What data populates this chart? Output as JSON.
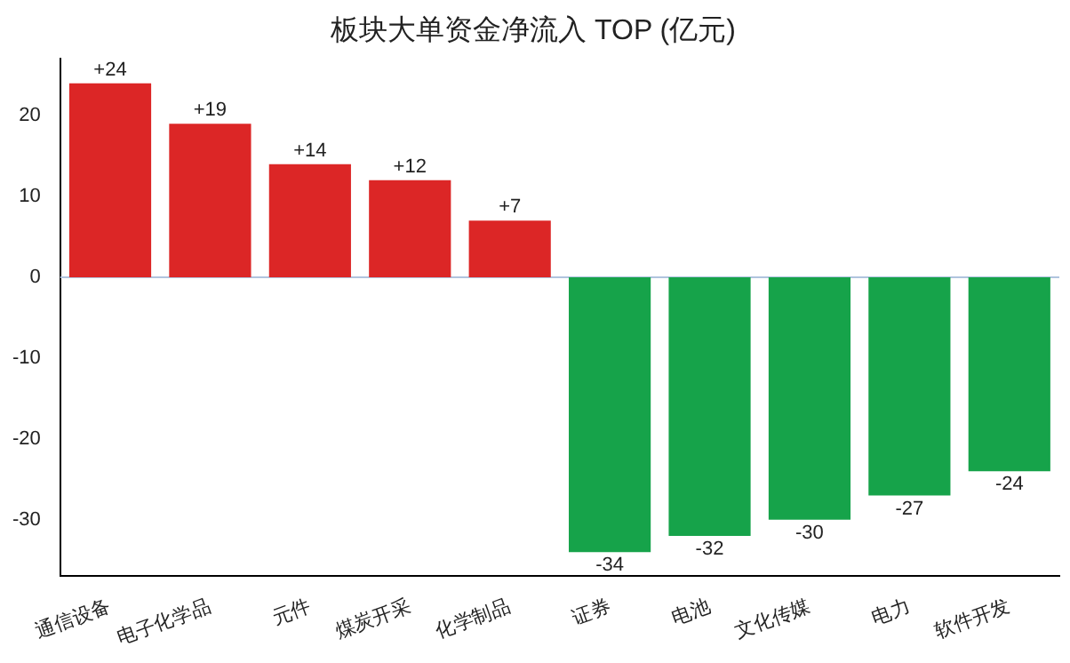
{
  "chart_data": {
    "type": "bar",
    "title": "板块大单资金净流入 TOP (亿元)",
    "categories": [
      "通信设备",
      "电子化学品",
      "元件",
      "煤炭开采",
      "化学制品",
      "证券",
      "电池",
      "文化传媒",
      "电力",
      "软件开发"
    ],
    "values": [
      24,
      19,
      14,
      12,
      7,
      -34,
      -32,
      -30,
      -27,
      -24
    ],
    "value_labels": [
      "+24",
      "+19",
      "+14",
      "+12",
      "+7",
      "-34",
      "-32",
      "-30",
      "-27",
      "-24"
    ],
    "colors": [
      "#dc2626",
      "#dc2626",
      "#dc2626",
      "#dc2626",
      "#dc2626",
      "#16a34a",
      "#16a34a",
      "#16a34a",
      "#16a34a",
      "#16a34a"
    ],
    "ylim": [
      -36.9,
      27
    ],
    "yticks": [
      -30,
      -20,
      -10,
      0,
      10,
      20
    ],
    "grid": false,
    "legend": false,
    "ref_lines": [
      {
        "axis": "y",
        "value": 0,
        "color": "#b0c4de"
      }
    ]
  }
}
